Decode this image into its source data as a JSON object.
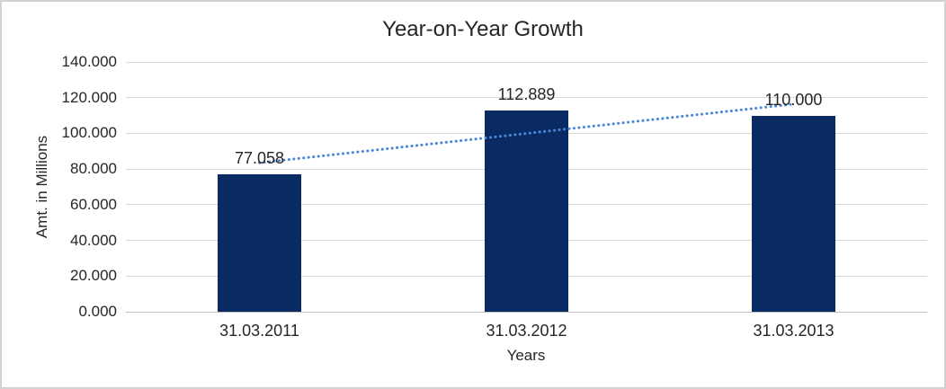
{
  "chart_data": {
    "type": "bar",
    "title": "Year-on-Year Growth",
    "categories": [
      "31.03.2011",
      "31.03.2012",
      "31.03.2013"
    ],
    "values": [
      77.058,
      112.889,
      110.0
    ],
    "data_labels": [
      "77.058",
      "112.889",
      "110.000"
    ],
    "xlabel": "Years",
    "ylabel": "Amt. in Millions",
    "ylim": [
      0,
      140
    ],
    "ytick_interval": 20,
    "ytick_labels": [
      "0.000",
      "20.000",
      "40.000",
      "60.000",
      "80.000",
      "100.000",
      "120.000",
      "140.000"
    ],
    "grid": true,
    "legend": "none",
    "bar_color": "#0a2a63",
    "gridline_color": "#d9d9d9",
    "axis_line_color": "#c0c0c0",
    "text_color": "#262626",
    "trendline": {
      "type": "linear",
      "style": "dotted",
      "color": "#4a86d8",
      "start_value": 83.5,
      "end_value": 116.4
    }
  }
}
